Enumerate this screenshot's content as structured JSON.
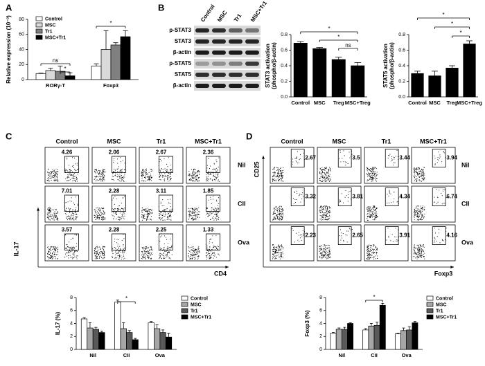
{
  "panel_labels": [
    "A",
    "B",
    "C",
    "D"
  ],
  "blot": {
    "columns": [
      "Control",
      "MSC",
      "Tr1",
      "MSC+Tr1"
    ],
    "rows": [
      "p-STAT3",
      "STAT3",
      "β-actin",
      "p-STAT5",
      "STAT5",
      "β-actin"
    ]
  },
  "flow_C": {
    "columns": [
      "Control",
      "MSC",
      "Tr1",
      "MSC+Tr1"
    ],
    "rows": [
      "Nil",
      "CII",
      "Ova"
    ],
    "y_axis": "IL-17",
    "x_axis": "CD4",
    "gates": [
      [
        4.26,
        2.06,
        2.67,
        2.36
      ],
      [
        7.01,
        2.28,
        3.11,
        1.85
      ],
      [
        3.57,
        2.28,
        2.25,
        1.33
      ]
    ]
  },
  "flow_D": {
    "columns": [
      "Control",
      "MSC",
      "Tr1",
      "MSC+Tr1"
    ],
    "rows": [
      "Nil",
      "CII",
      "Ova"
    ],
    "y_axis": "CD25",
    "x_axis": "Foxp3",
    "gates": [
      [
        2.67,
        3.5,
        3.44,
        3.94
      ],
      [
        3.32,
        3.81,
        4.34,
        6.74
      ],
      [
        2.23,
        2.65,
        3.91,
        4.16
      ]
    ]
  },
  "chart_data": [
    {
      "type": "bar",
      "ylabel": [
        "Relative expression (10⁻³)"
      ],
      "categories": [
        "RORγ-T",
        "Foxp3"
      ],
      "series": [
        {
          "name": "Control",
          "color": "#ffffff",
          "values": [
            8,
            18
          ],
          "errors": [
            0.5,
            3
          ]
        },
        {
          "name": "MSC",
          "color": "#d9d9d9",
          "values": [
            12,
            40
          ],
          "errors": [
            3,
            25
          ]
        },
        {
          "name": "Tr1",
          "color": "#808080",
          "values": [
            11,
            46
          ],
          "errors": [
            7,
            3
          ]
        },
        {
          "name": "MSC+Tr1",
          "color": "#000000",
          "values": [
            5,
            57
          ],
          "errors": [
            4,
            8
          ]
        }
      ],
      "ylim": [
        0,
        80
      ],
      "yticks": [
        0,
        20,
        40,
        60,
        80
      ],
      "annotations": [
        "ns",
        "*",
        "*"
      ]
    },
    {
      "type": "bar",
      "ylabel": [
        "STAT3 activation",
        "(phospho/β-actin)"
      ],
      "categories": [
        "Control",
        "MSC",
        "Treg",
        "MSC+Treg"
      ],
      "values": [
        0.69,
        0.62,
        0.48,
        0.4
      ],
      "errors": [
        0.02,
        0.015,
        0.03,
        0.04
      ],
      "color": "#000000",
      "ylim": [
        0,
        0.8
      ],
      "yticks": [
        {
          "value": 0,
          "label": "0.0"
        },
        0.2,
        0.4,
        0.6,
        0.8
      ],
      "annotations": [
        "*",
        "*",
        "ns"
      ]
    },
    {
      "type": "bar",
      "ylabel": [
        "STAT5 activation",
        "(phospho/β-actin)"
      ],
      "categories": [
        "Control",
        "MSC",
        "Treg",
        "MSC+Treg"
      ],
      "values": [
        0.3,
        0.27,
        0.37,
        0.68
      ],
      "errors": [
        0.03,
        0.06,
        0.03,
        0.04
      ],
      "color": "#000000",
      "ylim": [
        0,
        0.8
      ],
      "yticks": [
        {
          "value": 0,
          "label": "0.0"
        },
        0.2,
        0.4,
        0.6,
        0.8
      ],
      "annotations": [
        "*",
        "*",
        "*"
      ]
    },
    {
      "type": "bar",
      "ylabel": [
        "IL-17 (%)"
      ],
      "categories": [
        "Nil",
        "CII",
        "Ova"
      ],
      "series": [
        {
          "name": "Control",
          "color": "#ffffff",
          "values": [
            4.7,
            7.3,
            4.1
          ],
          "errors": [
            0.2,
            0.3,
            0.2
          ]
        },
        {
          "name": "MSC",
          "color": "#a6a6a6",
          "values": [
            3.3,
            3.2,
            3.2
          ],
          "errors": [
            0.8,
            0.9,
            0.6
          ]
        },
        {
          "name": "Tr1",
          "color": "#595959",
          "values": [
            3.1,
            2.6,
            2.6
          ],
          "errors": [
            0.3,
            0.3,
            0.4
          ]
        },
        {
          "name": "MSC+Tr1",
          "color": "#000000",
          "values": [
            2.6,
            1.5,
            1.9
          ],
          "errors": [
            0.2,
            0.2,
            0.6
          ]
        }
      ],
      "ylim": [
        0,
        8
      ],
      "yticks": [
        0,
        2,
        4,
        6,
        8
      ],
      "annotations": [
        "*"
      ]
    },
    {
      "type": "bar",
      "ylabel": [
        "Foxp3 (%)"
      ],
      "categories": [
        "Nil",
        "CII",
        "Ova"
      ],
      "series": [
        {
          "name": "Control",
          "color": "#ffffff",
          "values": [
            2.5,
            3.0,
            2.4
          ],
          "errors": [
            0.1,
            0.2,
            0.1
          ]
        },
        {
          "name": "MSC",
          "color": "#a6a6a6",
          "values": [
            3.1,
            3.6,
            2.9
          ],
          "errors": [
            0.2,
            0.4,
            0.4
          ]
        },
        {
          "name": "Tr1",
          "color": "#595959",
          "values": [
            3.1,
            3.7,
            3.0
          ],
          "errors": [
            0.3,
            0.5,
            0.5
          ]
        },
        {
          "name": "MSC+Tr1",
          "color": "#000000",
          "values": [
            4.0,
            6.8,
            4.1
          ],
          "errors": [
            0.1,
            0.3,
            0.2
          ]
        }
      ],
      "ylim": [
        0,
        8
      ],
      "yticks": [
        0,
        2,
        4,
        6,
        8
      ],
      "annotations": [
        "*"
      ]
    }
  ]
}
